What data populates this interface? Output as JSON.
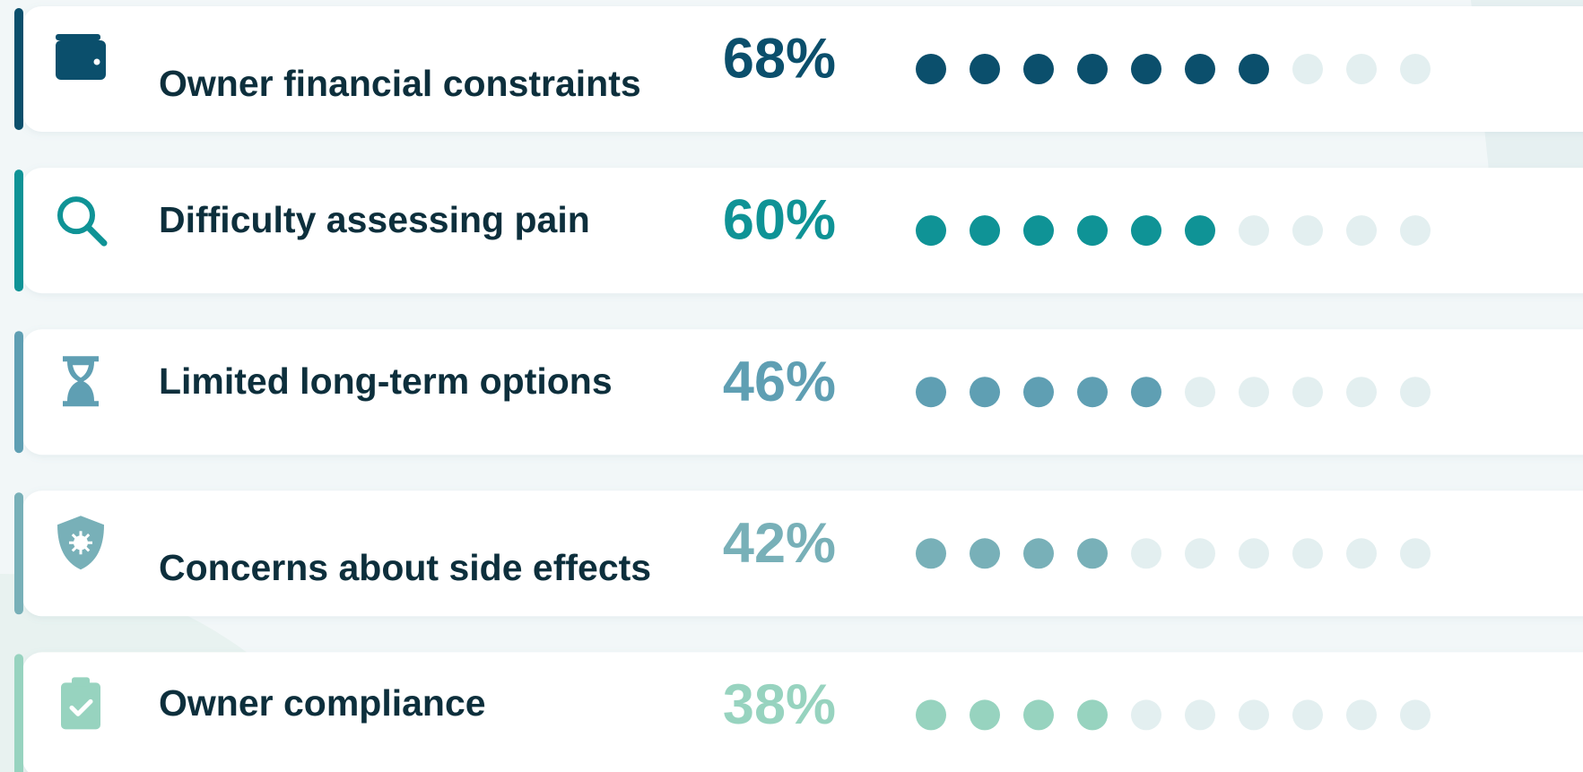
{
  "chart_data": {
    "type": "dot",
    "categories": [
      "Owner financial constraints",
      "Difficulty assessing pain",
      "Limited long-term options",
      "Concerns about side effects",
      "Owner compliance"
    ],
    "values": [
      68,
      60,
      46,
      42,
      38
    ],
    "value_labels": [
      "68%",
      "60%",
      "46%",
      "42%",
      "38%"
    ],
    "colors": [
      "#0b4f6c",
      "#0f9396",
      "#5f9fb3",
      "#78b0b8",
      "#97d3bf"
    ],
    "empty_color": "#e3eff0",
    "xlim": [
      0,
      100
    ]
  }
}
